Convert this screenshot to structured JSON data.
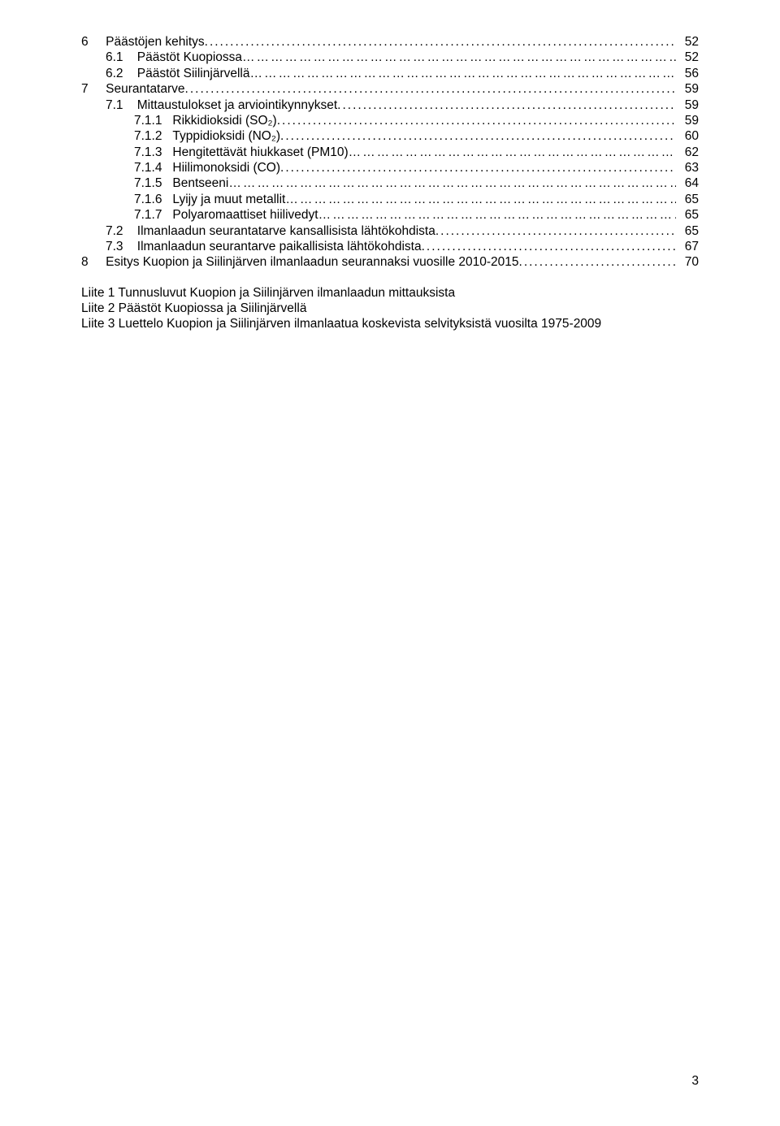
{
  "toc": [
    {
      "indent": 0,
      "num": "6",
      "title": "Päästöjen kehitys",
      "leader": "dots",
      "page": "52"
    },
    {
      "indent": 1,
      "num": "6.1",
      "title": "Päästöt Kuopiossa",
      "leader": "dashes",
      "page": "52"
    },
    {
      "indent": 1,
      "num": "6.2",
      "title": "Päästöt Siilinjärvellä",
      "leader": "dashes",
      "page": "56"
    },
    {
      "indent": 0,
      "num": "7",
      "title": "Seurantatarve",
      "leader": "dots",
      "page": "59"
    },
    {
      "indent": 1,
      "num": "7.1",
      "title": "Mittaustulokset ja arviointikynnykset",
      "leader": "dots",
      "page": "59"
    },
    {
      "indent": 2,
      "num": "7.1.1",
      "title": "Rikkidioksidi (SO₂)",
      "leader": "dots",
      "page": "59"
    },
    {
      "indent": 2,
      "num": "7.1.2",
      "title": "Typpidioksidi (NO₂)",
      "leader": "dots",
      "page": "60"
    },
    {
      "indent": 2,
      "num": "7.1.3",
      "title": "Hengitettävät hiukkaset (PM10)",
      "leader": "dashes",
      "page": "62"
    },
    {
      "indent": 2,
      "num": "7.1.4",
      "title": "Hiilimonoksidi (CO)",
      "leader": "dots",
      "page": "63"
    },
    {
      "indent": 2,
      "num": "7.1.5",
      "title": "Bentseeni",
      "leader": "dashes",
      "page": "64"
    },
    {
      "indent": 2,
      "num": "7.1.6",
      "title": "Lyijy ja muut metallit",
      "leader": "dashes",
      "page": "65"
    },
    {
      "indent": 2,
      "num": "7.1.7",
      "title": "Polyaromaattiset hiilivedyt",
      "leader": "dashes",
      "page": "65"
    },
    {
      "indent": 1,
      "num": "7.2",
      "title": "Ilmanlaadun seurantatarve kansallisista lähtökohdista",
      "leader": "dots",
      "page": "65"
    },
    {
      "indent": 1,
      "num": "7.3",
      "title": "Ilmanlaadun seurantarve paikallisista lähtökohdista",
      "leader": "dots",
      "page": "67"
    },
    {
      "indent": 0,
      "num": "8",
      "title": "Esitys Kuopion ja Siilinjärven ilmanlaadun seurannaksi vuosille 2010-2015",
      "leader": "dots",
      "page": "70"
    }
  ],
  "appendices": [
    "Liite 1 Tunnusluvut Kuopion ja Siilinjärven ilmanlaadun mittauksista",
    "Liite 2  Päästöt Kuopiossa ja Siilinjärvellä",
    "Liite 3  Luettelo Kuopion ja Siilinjärven ilmanlaatua koskevista selvityksistä vuosilta 1975-2009"
  ],
  "page_number": "3"
}
